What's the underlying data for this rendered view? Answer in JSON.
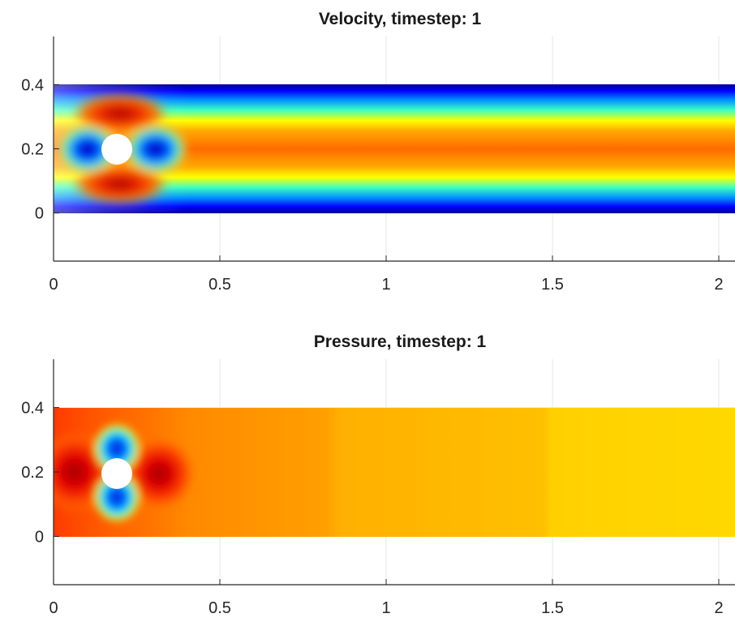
{
  "chart_data": [
    {
      "type": "heatmap",
      "title": "Velocity, timestep: 1",
      "field": "velocity",
      "colormap": "jet",
      "xlim": [
        0,
        2.2
      ],
      "ylim": [
        -0.15,
        0.55
      ],
      "x_ticks": [
        0,
        0.5,
        1,
        1.5,
        2
      ],
      "x_tick_labels": [
        "0",
        "0.5",
        "1",
        "1.5",
        "2"
      ],
      "y_ticks": [
        0,
        0.2,
        0.4
      ],
      "y_tick_labels": [
        "0",
        "0.2",
        "0.4"
      ],
      "grid": true,
      "domain": {
        "x": [
          0,
          2.2
        ],
        "y": [
          0,
          0.41
        ]
      },
      "obstacle": {
        "shape": "circle",
        "center": [
          0.2,
          0.2
        ],
        "radius": 0.05
      },
      "features": [
        {
          "region": "walls y=0 and y=0.41",
          "level": "low"
        },
        {
          "region": "channel centerline y≈0.2, x>0.45",
          "level": "high"
        },
        {
          "region": "above and below cylinder",
          "level": "high"
        },
        {
          "region": "upstream and downstream of cylinder",
          "level": "low"
        }
      ]
    },
    {
      "type": "heatmap",
      "title": "Pressure, timestep: 1",
      "field": "pressure",
      "colormap": "jet",
      "xlim": [
        0,
        2.2
      ],
      "ylim": [
        -0.15,
        0.55
      ],
      "x_ticks": [
        0,
        0.5,
        1,
        1.5,
        2
      ],
      "x_tick_labels": [
        "0",
        "0.5",
        "1",
        "1.5",
        "2"
      ],
      "y_ticks": [
        0,
        0.2,
        0.4
      ],
      "y_tick_labels": [
        "0",
        "0.2",
        "0.4"
      ],
      "grid": true,
      "domain": {
        "x": [
          0,
          2.2
        ],
        "y": [
          0,
          0.41
        ]
      },
      "obstacle": {
        "shape": "circle",
        "center": [
          0.2,
          0.2
        ],
        "radius": 0.05
      },
      "features": [
        {
          "region": "upstream of cylinder (stagnation)",
          "level": "high"
        },
        {
          "region": "downstream of cylinder",
          "level": "high"
        },
        {
          "region": "above and below cylinder",
          "level": "low"
        },
        {
          "region": "x 0.45–0.9",
          "level": "medium-high"
        },
        {
          "region": "x 0.9–1.6",
          "level": "medium"
        },
        {
          "region": "x 1.6–2.2",
          "level": "medium-low"
        }
      ]
    }
  ]
}
